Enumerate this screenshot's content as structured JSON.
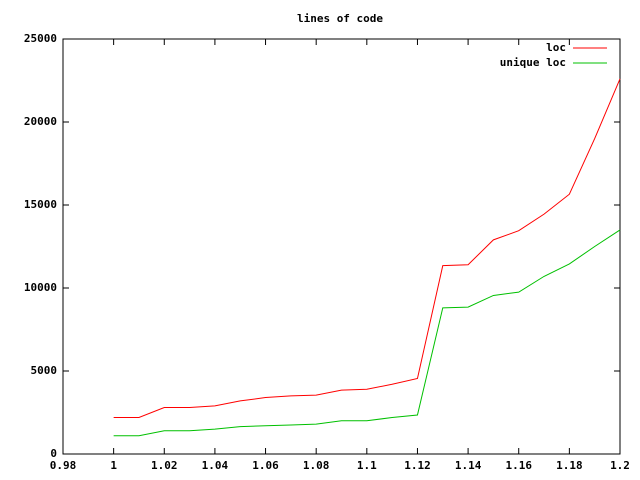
{
  "chart_data": {
    "type": "line",
    "title": "lines of code",
    "x": [
      1,
      1.01,
      1.02,
      1.03,
      1.04,
      1.05,
      1.06,
      1.07,
      1.08,
      1.09,
      1.1,
      1.11,
      1.12,
      1.13,
      1.14,
      1.15,
      1.16,
      1.17,
      1.18,
      1.19,
      1.2
    ],
    "series": [
      {
        "name": "loc",
        "color": "#ff0000",
        "values": [
          2200,
          2200,
          2800,
          2800,
          2900,
          3200,
          3400,
          3500,
          3550,
          3850,
          3900,
          4200,
          4550,
          11350,
          11400,
          12900,
          13450,
          14450,
          15650,
          19000,
          22600
        ]
      },
      {
        "name": "unique loc",
        "color": "#00c000",
        "values": [
          1100,
          1100,
          1400,
          1400,
          1500,
          1650,
          1700,
          1750,
          1800,
          2000,
          2000,
          2200,
          2350,
          8800,
          8850,
          9550,
          9750,
          10700,
          11450,
          12500,
          13500
        ]
      }
    ],
    "xlim": [
      0.98,
      1.2
    ],
    "xticks": [
      0.98,
      1,
      1.02,
      1.04,
      1.06,
      1.08,
      1.1,
      1.12,
      1.14,
      1.16,
      1.18,
      1.2
    ],
    "ylim": [
      0,
      25000
    ],
    "yticks": [
      0,
      5000,
      10000,
      15000,
      20000,
      25000
    ],
    "legend": "top-right"
  }
}
